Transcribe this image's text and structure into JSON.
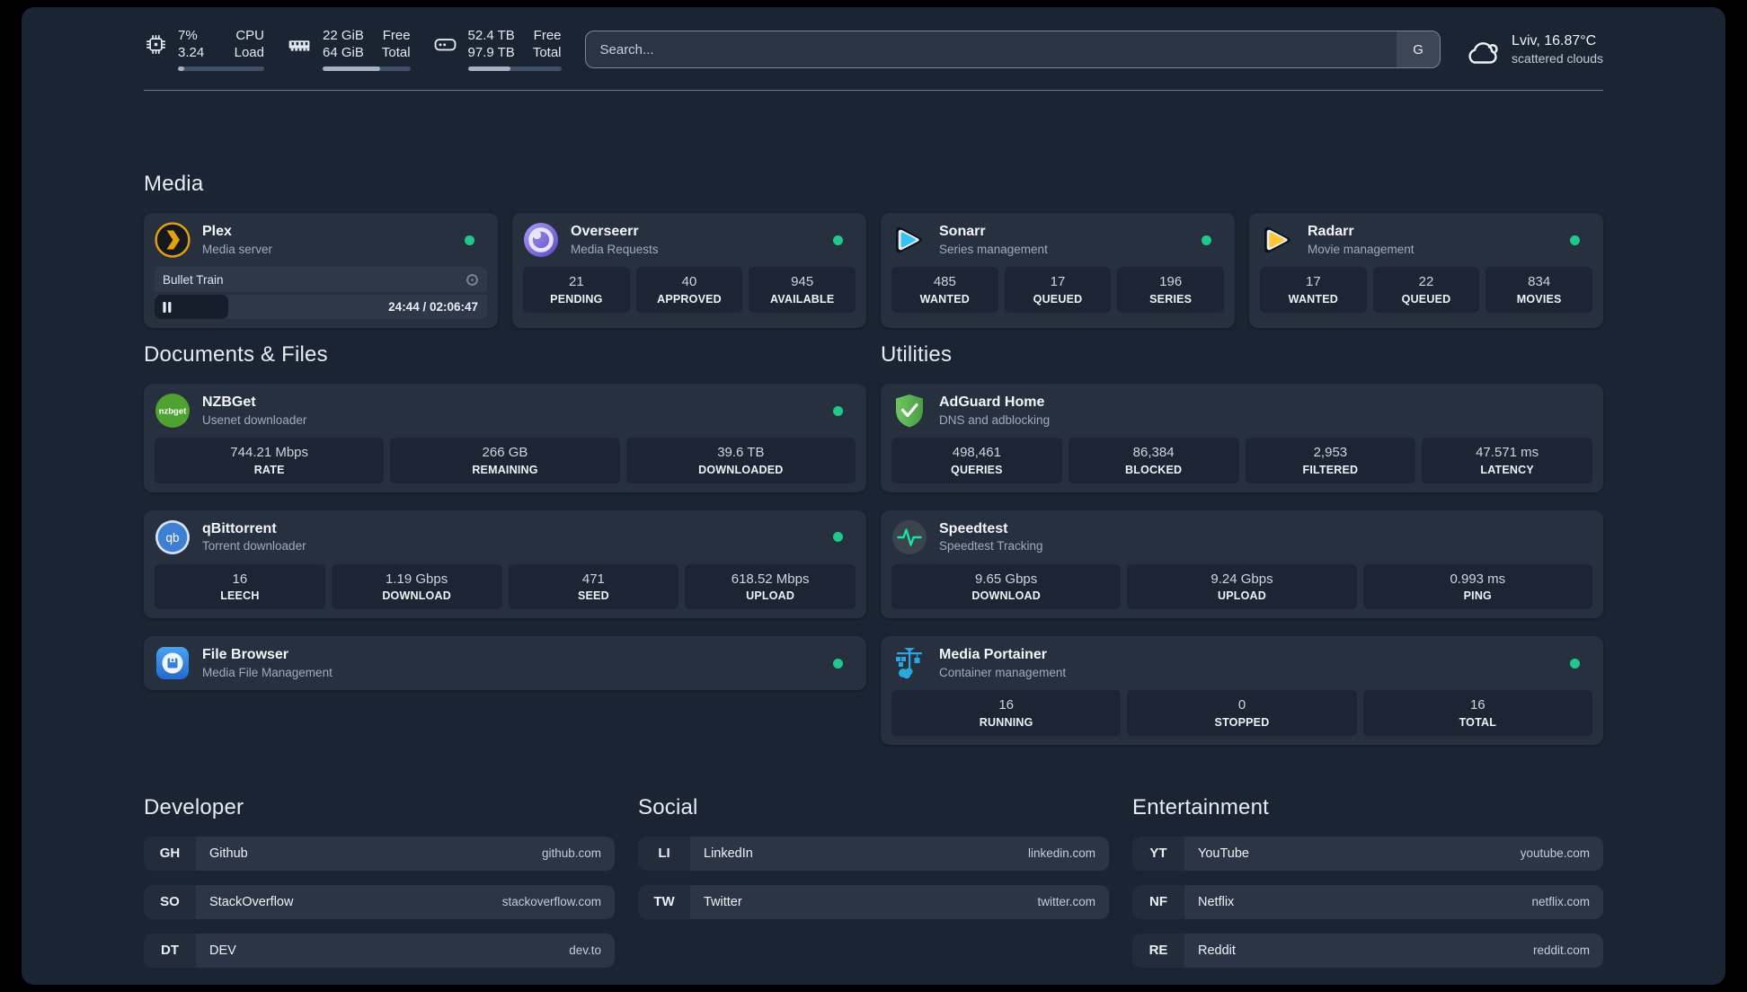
{
  "header": {
    "resources": [
      {
        "icon": "cpu-icon",
        "values": [
          "7%",
          "3.24"
        ],
        "labels": [
          "CPU",
          "Load"
        ],
        "progress_pct": 7
      },
      {
        "icon": "memory-icon",
        "values": [
          "22 GiB",
          "64 GiB"
        ],
        "labels": [
          "Free",
          "Total"
        ],
        "progress_pct": 66
      },
      {
        "icon": "disk-icon",
        "values": [
          "52.4 TB",
          "97.9 TB"
        ],
        "labels": [
          "Free",
          "Total"
        ],
        "progress_pct": 46
      }
    ],
    "search": {
      "placeholder": "Search...",
      "provider_button": "G"
    },
    "weather": {
      "icon": "cloud-icon",
      "location": "Lviv, 16.87°C",
      "condition": "scattered clouds"
    }
  },
  "groups": [
    {
      "id": "media",
      "title": "Media",
      "services": [
        {
          "name": "Plex",
          "description": "Media server",
          "icon": "plex-icon",
          "status_dot": true,
          "player": {
            "now_playing": "Bullet Train",
            "time_display": "24:44 / 02:06:47",
            "progress_pct": 19.6
          }
        },
        {
          "name": "Overseerr",
          "description": "Media Requests",
          "icon": "overseerr-icon",
          "status_dot": true,
          "stats": [
            {
              "value": "21",
              "label": "PENDING"
            },
            {
              "value": "40",
              "label": "APPROVED"
            },
            {
              "value": "945",
              "label": "AVAILABLE"
            }
          ]
        },
        {
          "name": "Sonarr",
          "description": "Series management",
          "icon": "sonarr-icon",
          "status_dot": true,
          "stats": [
            {
              "value": "485",
              "label": "WANTED"
            },
            {
              "value": "17",
              "label": "QUEUED"
            },
            {
              "value": "196",
              "label": "SERIES"
            }
          ]
        },
        {
          "name": "Radarr",
          "description": "Movie management",
          "icon": "radarr-icon",
          "status_dot": true,
          "stats": [
            {
              "value": "17",
              "label": "WANTED"
            },
            {
              "value": "22",
              "label": "QUEUED"
            },
            {
              "value": "834",
              "label": "MOVIES"
            }
          ]
        }
      ]
    },
    {
      "id": "documents",
      "title": "Documents & Files",
      "services": [
        {
          "name": "NZBGet",
          "description": "Usenet downloader",
          "icon": "nzbget-icon",
          "status_dot": true,
          "stats": [
            {
              "value": "744.21 Mbps",
              "label": "RATE"
            },
            {
              "value": "266 GB",
              "label": "REMAINING"
            },
            {
              "value": "39.6 TB",
              "label": "DOWNLOADED"
            }
          ]
        },
        {
          "name": "qBittorrent",
          "description": "Torrent downloader",
          "icon": "qbittorrent-icon",
          "status_dot": true,
          "stats": [
            {
              "value": "16",
              "label": "LEECH"
            },
            {
              "value": "1.19 Gbps",
              "label": "DOWNLOAD"
            },
            {
              "value": "471",
              "label": "SEED"
            },
            {
              "value": "618.52 Mbps",
              "label": "UPLOAD"
            }
          ]
        },
        {
          "name": "File Browser",
          "description": "Media File Management",
          "icon": "filebrowser-icon",
          "status_dot": true
        }
      ]
    },
    {
      "id": "utilities",
      "title": "Utilities",
      "services": [
        {
          "name": "AdGuard Home",
          "description": "DNS and adblocking",
          "icon": "adguard-icon",
          "status_dot": false,
          "stats": [
            {
              "value": "498,461",
              "label": "QUERIES"
            },
            {
              "value": "86,384",
              "label": "BLOCKED"
            },
            {
              "value": "2,953",
              "label": "FILTERED"
            },
            {
              "value": "47.571 ms",
              "label": "LATENCY"
            }
          ]
        },
        {
          "name": "Speedtest",
          "description": "Speedtest Tracking",
          "icon": "speedtest-icon",
          "status_dot": false,
          "stats": [
            {
              "value": "9.65 Gbps",
              "label": "DOWNLOAD"
            },
            {
              "value": "9.24 Gbps",
              "label": "UPLOAD"
            },
            {
              "value": "0.993 ms",
              "label": "PING"
            }
          ]
        },
        {
          "name": "Media Portainer",
          "description": "Container management",
          "icon": "portainer-icon",
          "status_dot": true,
          "stats": [
            {
              "value": "16",
              "label": "RUNNING"
            },
            {
              "value": "0",
              "label": "STOPPED"
            },
            {
              "value": "16",
              "label": "TOTAL"
            }
          ]
        }
      ]
    }
  ],
  "bookmarks": [
    {
      "title": "Developer",
      "items": [
        {
          "abbr": "GH",
          "name": "Github",
          "url": "github.com"
        },
        {
          "abbr": "SO",
          "name": "StackOverflow",
          "url": "stackoverflow.com"
        },
        {
          "abbr": "DT",
          "name": "DEV",
          "url": "dev.to"
        }
      ]
    },
    {
      "title": "Social",
      "items": [
        {
          "abbr": "LI",
          "name": "LinkedIn",
          "url": "linkedin.com"
        },
        {
          "abbr": "TW",
          "name": "Twitter",
          "url": "twitter.com"
        }
      ]
    },
    {
      "title": "Entertainment",
      "items": [
        {
          "abbr": "YT",
          "name": "YouTube",
          "url": "youtube.com"
        },
        {
          "abbr": "NF",
          "name": "Netflix",
          "url": "netflix.com"
        },
        {
          "abbr": "RE",
          "name": "Reddit",
          "url": "reddit.com"
        }
      ]
    }
  ],
  "colors": {
    "background": "#1b2433",
    "card": "#27303f",
    "stat_block": "#1d2534",
    "status_online": "#1fc88b",
    "accent_plex": "#e5a00d",
    "accent_sonarr": "#36c2f3",
    "accent_radarr": "#fdc631",
    "accent_speedtest": "#17e3a2",
    "accent_portainer": "#2aa7df"
  }
}
